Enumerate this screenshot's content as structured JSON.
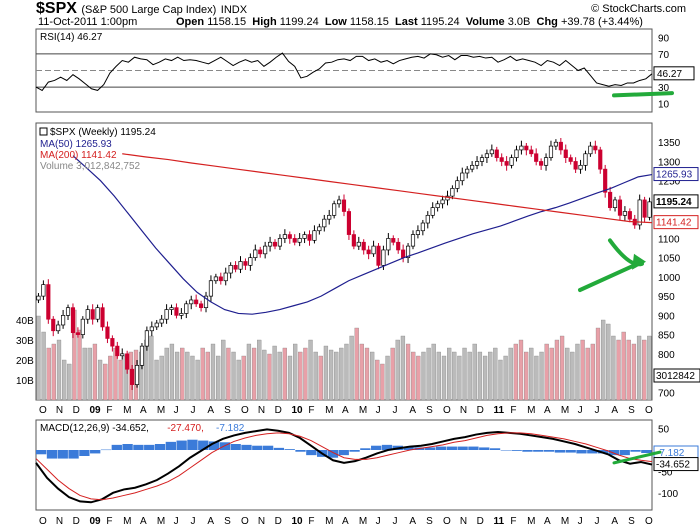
{
  "header": {
    "symbol": "$SPX",
    "description": "(S&P 500 Large Cap Index)",
    "exchange": "INDX",
    "copyright": "© StockCharts.com",
    "date": "11-Oct-2011 1:00pm",
    "open_label": "Open",
    "open": "1158.15",
    "high_label": "High",
    "high": "1199.24",
    "low_label": "Low",
    "low": "1158.15",
    "last_label": "Last",
    "last": "1195.24",
    "volume_label": "Volume",
    "volume": "3.0B",
    "chg_label": "Chg",
    "chg": "+39.78 (+3.44%)"
  },
  "chart_data": [
    {
      "type": "line",
      "panel": "rsi",
      "legend": "RSI(14) 46.27",
      "last_label": "46.27",
      "y_ticks": [
        10,
        30,
        50,
        70,
        90
      ],
      "ylim": [
        0,
        100
      ],
      "guides": [
        30,
        50,
        70
      ],
      "series": [
        {
          "name": "RSI(14)",
          "values": [
            30,
            26,
            36,
            38,
            42,
            38,
            45,
            40,
            34,
            28,
            26,
            33,
            47,
            55,
            62,
            60,
            66,
            64,
            63,
            57,
            60,
            64,
            62,
            66,
            62,
            63,
            62,
            60,
            58,
            62,
            66,
            61,
            56,
            60,
            63,
            60,
            62,
            55,
            60,
            66,
            71,
            61,
            55,
            41,
            43,
            48,
            52,
            59,
            60,
            63,
            64,
            62,
            67,
            67,
            62,
            64,
            60,
            62,
            58,
            62,
            64,
            66,
            67,
            65,
            70,
            69,
            66,
            68,
            63,
            68,
            68,
            66,
            67,
            65,
            66,
            60,
            63,
            67,
            62,
            64,
            62,
            60,
            56,
            62,
            60,
            56,
            62,
            56,
            50,
            53,
            44,
            35,
            33,
            31,
            33,
            32,
            35,
            35,
            38,
            40,
            46
          ]
        }
      ],
      "color": "#000000",
      "annotation": {
        "type": "arrow",
        "color": "#22aa3a",
        "target_value": 30
      }
    },
    {
      "type": "candlestick",
      "panel": "price",
      "title": "$SPX (Weekly) 1195.24",
      "legend": [
        {
          "label": "MA(50) 1265.93",
          "color": "#1f1f8f"
        },
        {
          "label": "MA(200) 1141.42",
          "color": "#d42020"
        },
        {
          "label": "Volume 3,012,842,752",
          "color": "#888888"
        }
      ],
      "ylim": [
        680,
        1400
      ],
      "y_ticks": [
        700,
        750,
        800,
        850,
        900,
        950,
        1000,
        1050,
        1100,
        1150,
        1200,
        1250,
        1300,
        1350
      ],
      "x_labels": [
        "O",
        "N",
        "D",
        "09",
        "F",
        "M",
        "A",
        "M",
        "J",
        "J",
        "A",
        "S",
        "O",
        "N",
        "D",
        "10",
        "F",
        "M",
        "A",
        "M",
        "J",
        "J",
        "A",
        "S",
        "O",
        "N",
        "D",
        "11",
        "F",
        "M",
        "A",
        "M",
        "J",
        "J",
        "A",
        "S",
        "O"
      ],
      "closes": [
        950,
        980,
        890,
        860,
        875,
        900,
        920,
        855,
        850,
        890,
        915,
        890,
        920,
        870,
        840,
        820,
        795,
        800,
        760,
        720,
        770,
        820,
        860,
        870,
        880,
        890,
        915,
        920,
        900,
        905,
        930,
        940,
        930,
        920,
        950,
        990,
        1000,
        990,
        1010,
        1030,
        1020,
        1040,
        1030,
        1050,
        1070,
        1060,
        1080,
        1090,
        1080,
        1100,
        1110,
        1100,
        1090,
        1100,
        1110,
        1095,
        1120,
        1130,
        1150,
        1160,
        1190,
        1200,
        1170,
        1110,
        1080,
        1090,
        1070,
        1060,
        1080,
        1030,
        1070,
        1100,
        1090,
        1070,
        1050,
        1080,
        1110,
        1120,
        1140,
        1160,
        1180,
        1190,
        1200,
        1210,
        1230,
        1250,
        1270,
        1280,
        1290,
        1300,
        1310,
        1320,
        1330,
        1310,
        1300,
        1290,
        1310,
        1330,
        1340,
        1330,
        1320,
        1300,
        1290,
        1310,
        1340,
        1350,
        1330,
        1310,
        1300,
        1280,
        1290,
        1320,
        1340,
        1330,
        1280,
        1220,
        1180,
        1200,
        1160,
        1170,
        1150,
        1135,
        1200,
        1155,
        1195
      ],
      "ma50": [
        1315,
        1283,
        1250,
        1210,
        1165,
        1120,
        1075,
        1035,
        995,
        960,
        935,
        915,
        905,
        903,
        908,
        915,
        925,
        935,
        950,
        970,
        990,
        1005,
        1020,
        1035,
        1050,
        1062,
        1075,
        1088,
        1100,
        1112,
        1122,
        1132,
        1145,
        1158,
        1170,
        1180,
        1192,
        1205,
        1218,
        1230,
        1245,
        1260,
        1266
      ],
      "ma200": [
        1320,
        1312,
        1305,
        1296,
        1288,
        1280,
        1272,
        1264,
        1256,
        1248,
        1240,
        1232,
        1224,
        1216,
        1208,
        1200,
        1192,
        1184,
        1176,
        1168,
        1160,
        1152,
        1144,
        1141
      ],
      "last_labels": [
        {
          "text": "1265.93",
          "color": "#1f1f8f"
        },
        {
          "text": "1195.24",
          "color": "#000000"
        },
        {
          "text": "1141.42",
          "color": "#d42020"
        }
      ],
      "volume_axis": [
        "40B",
        "30B",
        "20B",
        "10B"
      ],
      "volume_label": "3012842",
      "volume_values": [
        42,
        34,
        26,
        28,
        30,
        20,
        18,
        45,
        35,
        26,
        26,
        28,
        20,
        18,
        22,
        26,
        20,
        22,
        24,
        25,
        24,
        30,
        32,
        20,
        22,
        26,
        28,
        24,
        26,
        24,
        22,
        20,
        26,
        24,
        28,
        22,
        30,
        26,
        24,
        20,
        22,
        28,
        26,
        30,
        25,
        23,
        27,
        24,
        26,
        22,
        28,
        24,
        26,
        30,
        24,
        22,
        27,
        25,
        24,
        26,
        28,
        32,
        36,
        28,
        26,
        24,
        20,
        18,
        22,
        26,
        30,
        32,
        28,
        24,
        22,
        24,
        26,
        28,
        24,
        22,
        26,
        24,
        22,
        26,
        24,
        28,
        24,
        22,
        24,
        26,
        20,
        22,
        26,
        28,
        30,
        24,
        26,
        22,
        24,
        28,
        26,
        30,
        32,
        26,
        24,
        28,
        30,
        26,
        28,
        36,
        40,
        38,
        32,
        30,
        34,
        30,
        28,
        32,
        30,
        32
      ],
      "annotation": {
        "type": "arrow",
        "color": "#22aa3a",
        "target_value": 1060
      }
    },
    {
      "type": "line",
      "panel": "macd",
      "legend": [
        {
          "label": "MACD(12,26,9) -34.652,",
          "color": "#000000"
        },
        {
          "label": "-27.470,",
          "color": "#d42020"
        },
        {
          "label": "-7.182",
          "color": "#3b7bd9"
        }
      ],
      "y_ticks": [
        50,
        0,
        -50,
        -100
      ],
      "ylim": [
        -140,
        70
      ],
      "last_labels": [
        {
          "text": "-7.182",
          "color": "#3b7bd9"
        },
        {
          "text": "-34.652",
          "color": "#000000"
        }
      ],
      "series": [
        {
          "name": "MACD(12,26,9)",
          "values": [
            -30,
            -65,
            -90,
            -110,
            -120,
            -122,
            -115,
            -100,
            -92,
            -88,
            -80,
            -70,
            -55,
            -38,
            -18,
            -2,
            14,
            26,
            34,
            40,
            44,
            48,
            45,
            40,
            28,
            10,
            -8,
            -24,
            -30,
            -26,
            -18,
            -8,
            0,
            4,
            8,
            10,
            14,
            20,
            26,
            30,
            36,
            40,
            42,
            40,
            38,
            34,
            30,
            26,
            20,
            14,
            6,
            -2,
            -10,
            -24,
            -32,
            -28,
            -34
          ]
        },
        {
          "name": "Signal",
          "values": [
            -20,
            -45,
            -70,
            -90,
            -106,
            -114,
            -116,
            -112,
            -106,
            -100,
            -92,
            -84,
            -74,
            -60,
            -42,
            -24,
            -6,
            8,
            20,
            28,
            34,
            38,
            40,
            38,
            32,
            22,
            8,
            -6,
            -18,
            -22,
            -22,
            -18,
            -12,
            -6,
            0,
            4,
            8,
            12,
            18,
            22,
            28,
            34,
            38,
            40,
            40,
            38,
            34,
            30,
            26,
            20,
            14,
            6,
            -2,
            -12,
            -20,
            -24,
            -27
          ]
        }
      ],
      "histogram": [
        -10,
        -20,
        -20,
        -20,
        -14,
        -8,
        1,
        12,
        14,
        12,
        12,
        14,
        19,
        22,
        24,
        22,
        20,
        18,
        14,
        12,
        10,
        10,
        5,
        2,
        -4,
        -12,
        -16,
        -18,
        -12,
        -4,
        4,
        10,
        12,
        10,
        8,
        6,
        6,
        8,
        8,
        8,
        8,
        6,
        4,
        0,
        -2,
        -4,
        -4,
        -4,
        -6,
        -6,
        -8,
        -8,
        -8,
        -12,
        -12,
        -4,
        -7
      ],
      "x_labels": [
        "O",
        "N",
        "D",
        "09",
        "F",
        "M",
        "A",
        "M",
        "J",
        "J",
        "A",
        "S",
        "O",
        "N",
        "D",
        "10",
        "F",
        "M",
        "A",
        "M",
        "J",
        "J",
        "A",
        "S",
        "O",
        "N",
        "D",
        "11",
        "F",
        "M",
        "A",
        "M",
        "J",
        "J",
        "A",
        "S",
        "O"
      ],
      "annotation": {
        "type": "arrow",
        "color": "#22aa3a"
      }
    }
  ],
  "colors": {
    "up": "#ffffff",
    "down": "#cc0030",
    "volume_up": "#bbbbbb",
    "volume_down": "#e8a0a8",
    "macd_hist": "#3b7bd9",
    "annotation": "#22aa3a"
  }
}
